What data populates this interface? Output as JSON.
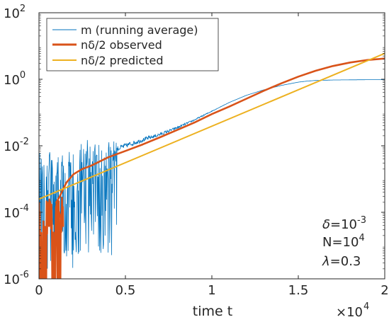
{
  "chart_data": {
    "type": "line",
    "title": "",
    "xlabel": "time t",
    "ylabel": "",
    "x_multiplier": "×10",
    "x_multiplier_exp": "4",
    "xlim": [
      0,
      2
    ],
    "ylim": [
      1e-06,
      100
    ],
    "yscale": "log",
    "grid": false,
    "legend_position": "top-left",
    "x_ticks": [
      {
        "value": 0,
        "label": "0"
      },
      {
        "value": 0.5,
        "label": "0.5"
      },
      {
        "value": 1,
        "label": "1"
      },
      {
        "value": 1.5,
        "label": "1.5"
      },
      {
        "value": 2,
        "label": "2"
      }
    ],
    "y_ticks": [
      {
        "value": 1e-06,
        "base": "10",
        "exp": "-6"
      },
      {
        "value": 0.0001,
        "base": "10",
        "exp": "-4"
      },
      {
        "value": 0.01,
        "base": "10",
        "exp": "-2"
      },
      {
        "value": 1,
        "base": "10",
        "exp": "0"
      },
      {
        "value": 100,
        "base": "10",
        "exp": "2"
      }
    ],
    "series": [
      {
        "name": "m (running average)",
        "color": "#0072bd",
        "noisy_until": 0.45,
        "noise_decades": 1.6,
        "x": [
          0,
          0.05,
          0.1,
          0.15,
          0.2,
          0.25,
          0.3,
          0.35,
          0.4,
          0.45,
          0.5,
          0.6,
          0.7,
          0.8,
          0.9,
          1.0,
          1.1,
          1.2,
          1.3,
          1.4,
          1.5,
          1.55,
          1.6,
          1.7,
          1.8,
          1.9,
          2.0
        ],
        "y": [
          0.006,
          0.005,
          0.003,
          0.004,
          0.003,
          0.006,
          0.008,
          0.006,
          0.007,
          0.008,
          0.01,
          0.015,
          0.022,
          0.035,
          0.06,
          0.11,
          0.2,
          0.33,
          0.48,
          0.65,
          0.82,
          0.88,
          0.92,
          0.95,
          0.96,
          0.97,
          0.97
        ]
      },
      {
        "name": "nδ/2 observed",
        "color": "#d95319",
        "x": [
          0.1,
          0.12,
          0.14,
          0.16,
          0.2,
          0.25,
          0.3,
          0.4,
          0.5,
          0.6,
          0.7,
          0.8,
          0.9,
          1.0,
          1.1,
          1.2,
          1.3,
          1.4,
          1.5,
          1.6,
          1.7,
          1.8,
          1.9,
          2.0
        ],
        "y": [
          0.0002,
          0.0003,
          0.0005,
          0.0008,
          0.0014,
          0.002,
          0.0025,
          0.0045,
          0.007,
          0.011,
          0.018,
          0.03,
          0.05,
          0.09,
          0.15,
          0.26,
          0.45,
          0.75,
          1.2,
          1.8,
          2.5,
          3.2,
          3.8,
          4.2
        ],
        "noisy_until": 0.14,
        "burst_x": [
          0.01,
          0.02,
          0.03,
          0.04,
          0.08,
          0.09,
          0.11,
          0.12
        ]
      },
      {
        "name": "nδ/2 predicted",
        "color": "#edb120",
        "x": [
          0,
          2
        ],
        "y": [
          0.00025,
          6.0
        ]
      }
    ],
    "annotations": [
      {
        "symbol": "δ",
        "text": "=10",
        "exp": "-3"
      },
      {
        "symbol": "",
        "text": "N=10",
        "exp": "4"
      },
      {
        "symbol": "λ",
        "text": "=0.3",
        "exp": ""
      }
    ]
  }
}
